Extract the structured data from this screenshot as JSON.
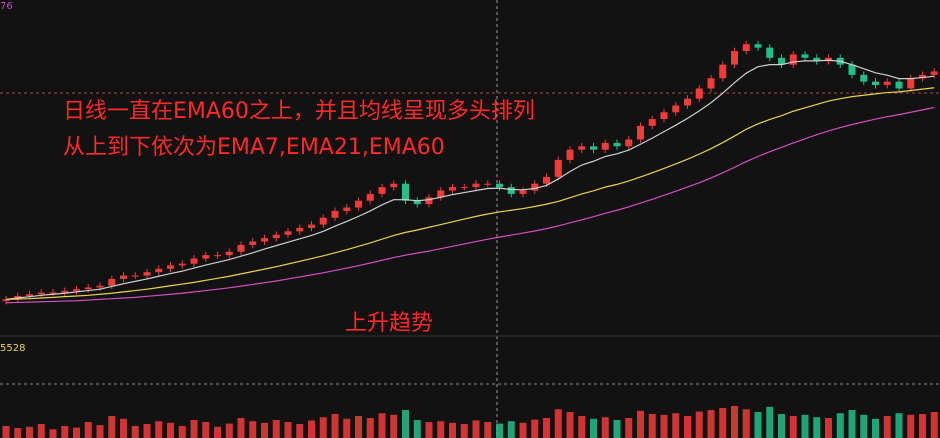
{
  "chart_data": {
    "type": "candlestick",
    "top_label": "76",
    "volume_label": "5528",
    "annotations": [
      "日线一直在EMA60之上，并且均线呈现多头排列",
      "从上到下依次为EMA7,EMA21,EMA60",
      "上升趋势"
    ],
    "up_color": "#f23b3b",
    "down_color": "#22c08a",
    "ylim": [
      0,
      97
    ],
    "volume_ylim": [
      0,
      100
    ],
    "open": [
      8.5,
      9,
      10,
      10.5,
      11,
      11,
      11.5,
      12,
      12.5,
      13,
      15,
      16,
      16,
      17,
      18,
      19,
      19.5,
      21,
      22,
      22,
      23,
      25,
      26,
      27,
      28,
      29,
      30,
      31,
      33,
      35,
      36,
      38,
      40,
      42,
      43,
      38,
      37,
      39,
      41,
      42,
      42,
      43,
      43,
      42,
      40,
      41,
      43,
      45,
      50,
      53,
      54,
      53,
      55,
      54,
      56,
      60,
      62,
      64,
      66,
      68,
      71,
      74,
      78,
      82,
      84,
      83,
      80,
      78,
      81,
      80,
      79,
      80,
      78,
      75,
      73,
      72,
      73,
      71,
      74,
      75
    ],
    "high": [
      10,
      11,
      11.5,
      12,
      12,
      12.5,
      13,
      13.5,
      14,
      16,
      17,
      17,
      18,
      19,
      20,
      20.5,
      22,
      23,
      23,
      24,
      26,
      27,
      28,
      29,
      30,
      31,
      32,
      34,
      36,
      37,
      39,
      41,
      43,
      44,
      44,
      39,
      40,
      42,
      43,
      43,
      44,
      44,
      44,
      43,
      42,
      44,
      46,
      51,
      54,
      55,
      55,
      56,
      56,
      57,
      61,
      63,
      65,
      67,
      69,
      72,
      75,
      79,
      83,
      85,
      85,
      84,
      81,
      82,
      82,
      81,
      81,
      81,
      79,
      76,
      74,
      74,
      74,
      75,
      76,
      77
    ],
    "low": [
      7.5,
      8,
      9,
      9.5,
      10,
      10,
      10.5,
      11,
      11.5,
      12,
      14,
      15,
      15,
      16,
      17,
      18,
      18.5,
      20,
      21,
      21,
      22,
      24,
      25,
      26,
      27,
      28,
      29,
      30,
      32,
      34,
      35,
      37,
      39,
      41,
      37,
      36,
      36,
      38,
      40,
      41,
      41,
      42,
      41,
      39,
      39,
      40,
      42,
      44,
      49,
      52,
      52,
      52,
      53,
      53,
      55,
      59,
      61,
      63,
      65,
      67,
      70,
      73,
      77,
      81,
      82,
      79,
      77,
      77,
      79,
      78,
      78,
      77,
      74,
      72,
      71,
      71,
      70,
      70,
      73,
      74
    ],
    "close": [
      9,
      10,
      10.5,
      11,
      11,
      11.5,
      12,
      12.5,
      13,
      15,
      16,
      16,
      17,
      18,
      19,
      19.5,
      21,
      22,
      22,
      23,
      25,
      26,
      27,
      28,
      29,
      30,
      31,
      33,
      35,
      36,
      38,
      40,
      42,
      43,
      38,
      37,
      39,
      41,
      42,
      42,
      43,
      43,
      42,
      40,
      41,
      43,
      45,
      50,
      53,
      54,
      53,
      55,
      54,
      56,
      60,
      62,
      64,
      66,
      68,
      71,
      74,
      78,
      82,
      84,
      83,
      80,
      78,
      81,
      80,
      79,
      80,
      78,
      75,
      73,
      72,
      73,
      71,
      74,
      75,
      76
    ],
    "volume": [
      30,
      25,
      28,
      35,
      22,
      30,
      26,
      40,
      32,
      55,
      48,
      30,
      35,
      42,
      38,
      30,
      45,
      40,
      28,
      36,
      50,
      42,
      38,
      45,
      40,
      35,
      44,
      52,
      60,
      48,
      55,
      50,
      62,
      58,
      70,
      45,
      40,
      42,
      38,
      35,
      44,
      40,
      36,
      42,
      38,
      46,
      50,
      72,
      65,
      55,
      48,
      52,
      45,
      50,
      68,
      60,
      58,
      62,
      55,
      66,
      70,
      75,
      80,
      72,
      65,
      78,
      60,
      55,
      58,
      52,
      50,
      62,
      70,
      58,
      48,
      55,
      62,
      58,
      60,
      65
    ],
    "ema": [
      {
        "color": "#cfcfcf",
        "values": [
          9,
          9.4,
          9.8,
          10.2,
          10.5,
          10.8,
          11.2,
          11.6,
          12,
          12.8,
          13.6,
          14.3,
          15,
          15.8,
          16.6,
          17.3,
          18.2,
          19.1,
          19.9,
          20.7,
          21.7,
          22.7,
          23.8,
          24.8,
          25.8,
          26.8,
          27.8,
          29,
          30.5,
          31.9,
          33.4,
          35,
          36.8,
          38.3,
          38.3,
          38,
          38.3,
          39,
          39.8,
          40.4,
          41,
          41.6,
          41.7,
          41.3,
          41.2,
          41.6,
          42.5,
          44.4,
          46.6,
          48.5,
          49.6,
          51,
          51.8,
          52.9,
          54.6,
          56.4,
          58.3,
          60.2,
          62.2,
          64.4,
          66.8,
          69.6,
          72.7,
          75.5,
          77.4,
          78,
          78,
          78.8,
          79.1,
          79.1,
          79.3,
          79,
          78,
          76.8,
          75.6,
          74.9,
          73.9,
          73.9,
          74.2,
          74.6
        ]
      },
      {
        "color": "#e8d44d",
        "values": [
          9,
          9.1,
          9.2,
          9.4,
          9.6,
          9.8,
          10,
          10.2,
          10.5,
          10.8,
          11.2,
          11.6,
          12,
          12.5,
          13,
          13.5,
          14,
          14.6,
          15.2,
          15.8,
          16.5,
          17.2,
          17.9,
          18.6,
          19.4,
          20.2,
          21,
          21.8,
          22.7,
          23.6,
          24.6,
          25.6,
          26.7,
          27.8,
          28.7,
          29.4,
          30.2,
          31,
          31.8,
          32.6,
          33.4,
          34.1,
          34.7,
          35.2,
          35.7,
          36.3,
          37,
          37.8,
          38.9,
          40,
          40.9,
          42,
          42.8,
          43.8,
          45,
          46.2,
          47.5,
          48.8,
          50.2,
          51.7,
          53.3,
          55.1,
          57,
          59,
          60.6,
          61.9,
          63,
          64.3,
          65.3,
          66.3,
          67.3,
          68,
          68.6,
          69,
          69.4,
          69.8,
          70,
          70.4,
          70.8,
          71.2
        ]
      },
      {
        "color": "#d24fc2",
        "values": [
          8,
          8.1,
          8.2,
          8.3,
          8.4,
          8.5,
          8.6,
          8.8,
          9,
          9.2,
          9.4,
          9.6,
          9.9,
          10.2,
          10.5,
          10.8,
          11.2,
          11.6,
          12,
          12.4,
          12.9,
          13.4,
          13.9,
          14.4,
          15,
          15.6,
          16.2,
          16.8,
          17.5,
          18.2,
          18.9,
          19.7,
          20.5,
          21.3,
          22,
          22.6,
          23.2,
          23.9,
          24.6,
          25.3,
          26,
          26.7,
          27.3,
          27.9,
          28.5,
          29.1,
          29.8,
          30.6,
          31.5,
          32.4,
          33.3,
          34.3,
          35.2,
          36.2,
          37.3,
          38.4,
          39.6,
          40.8,
          42,
          43.3,
          44.7,
          46.2,
          47.8,
          49.5,
          51,
          52.4,
          53.7,
          55,
          56.2,
          57.4,
          58.5,
          59.5,
          60.4,
          61.2,
          62,
          62.7,
          63.3,
          64,
          64.7,
          65.4
        ]
      }
    ]
  }
}
